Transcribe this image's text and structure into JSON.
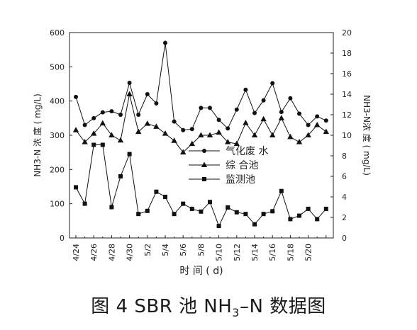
{
  "chart_data": {
    "type": "line",
    "xlabel": "时 间 ( d)",
    "ylabel_left": "NH3-N 浓 度 ( mg/L)",
    "ylabel_right": "NH3-N浓 度 ( mg/L)",
    "y_left_lim": [
      0,
      600
    ],
    "y_left_ticks": [
      0,
      100,
      200,
      300,
      400,
      500,
      600
    ],
    "y_right_lim": [
      0,
      20
    ],
    "y_right_ticks": [
      0,
      2,
      4,
      6,
      8,
      10,
      12,
      14,
      16,
      18,
      20
    ],
    "x_ticks": [
      "4/24",
      "4/26",
      "4/28",
      "4/30",
      "5/2",
      "5/4",
      "5/6",
      "5/8",
      "5/10",
      "5/12",
      "5/14",
      "5/16",
      "5/18",
      "5/20"
    ],
    "legend_position": "right-middle",
    "series": [
      {
        "name": "气化废 水",
        "axis": "left",
        "marker": "circle",
        "values": [
          412,
          330,
          350,
          367,
          370,
          360,
          453,
          360,
          420,
          393,
          570,
          340,
          315,
          318,
          380,
          380,
          345,
          320,
          375,
          433,
          365,
          402,
          452,
          368,
          408,
          363,
          330,
          355,
          343
        ]
      },
      {
        "name": "综 合池",
        "axis": "left",
        "marker": "triangle",
        "values": [
          315,
          280,
          305,
          335,
          300,
          285,
          420,
          310,
          334,
          325,
          305,
          284,
          250,
          275,
          300,
          300,
          308,
          280,
          275,
          336,
          300,
          347,
          300,
          350,
          295,
          280,
          300,
          330,
          310
        ]
      },
      {
        "name": "监测池",
        "axis": "left",
        "marker": "square",
        "values": [
          148,
          100,
          272,
          272,
          90,
          180,
          245,
          70,
          79,
          135,
          120,
          70,
          100,
          85,
          77,
          105,
          35,
          89,
          75,
          70,
          40,
          70,
          78,
          137,
          55,
          65,
          85,
          55,
          85
        ]
      }
    ]
  },
  "figure": {
    "caption_prefix": "图 4  SBR 池 NH",
    "caption_sub": "3",
    "caption_suffix": "–N 数据图"
  }
}
